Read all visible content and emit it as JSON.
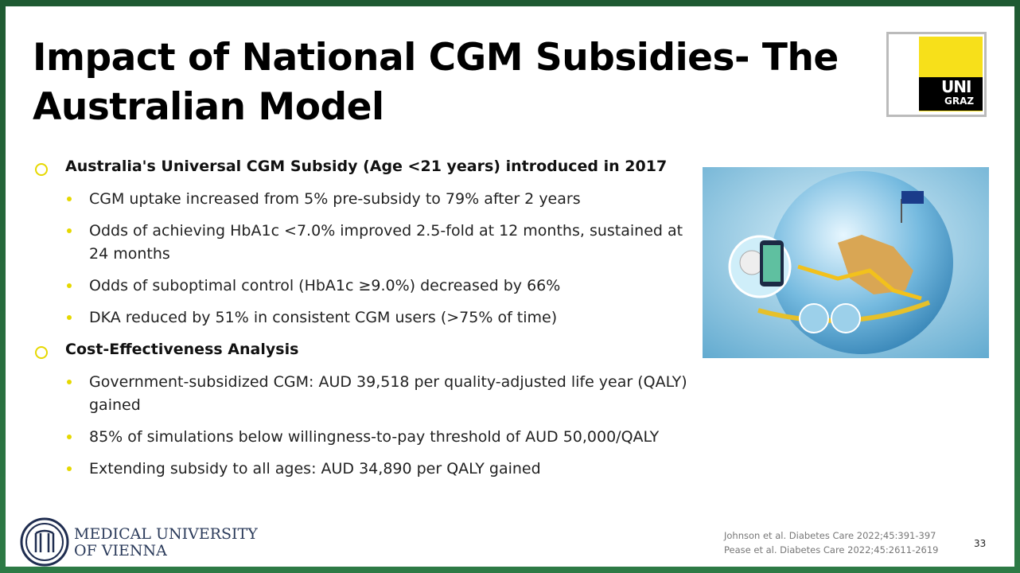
{
  "header": {
    "title": [
      "Impact of National CGM Subsidies- The",
      "Australian Model"
    ]
  },
  "logo": {
    "line1": "UNI",
    "line2": "GRAZ"
  },
  "bullets": [
    {
      "text": "Australia's Universal CGM Subsidy (Age <21 years) introduced in 2017",
      "items": [
        "CGM uptake increased from 5% pre-subsidy to 79% after 2 years",
        "Odds of achieving HbA1c <7.0% improved 2.5-fold at 12 months, sustained at 24 months",
        "Odds of suboptimal control (HbA1c ≥9.0%) decreased by 66%",
        "DKA reduced by 51% in consistent CGM users (>75% of time)"
      ]
    },
    {
      "text": "Cost-Effectiveness Analysis",
      "items": [
        "Government-subsidized CGM: AUD 39,518 per quality-adjusted life year (QALY) gained",
        "85% of simulations below willingness-to-pay threshold of AUD 50,000/QALY",
        "Extending subsidy to all ages: AUD 34,890 per QALY gained"
      ]
    }
  ],
  "footer": {
    "institution": [
      "MEDICAL UNIVERSITY",
      "OF VIENNA"
    ],
    "references": [
      "Johnson et al. Diabetes Care 2022;45:391-397",
      "Pease et al. Diabetes Care 2022;45:2611-2619"
    ],
    "page": "33"
  }
}
